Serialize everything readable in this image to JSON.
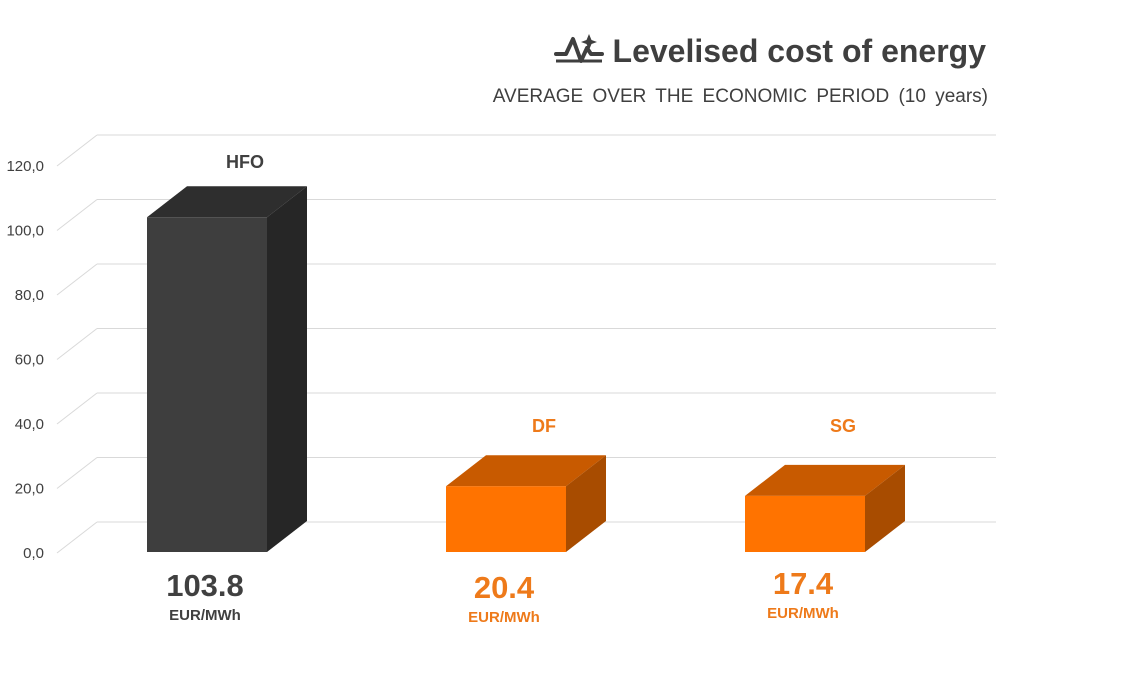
{
  "chart_data": {
    "type": "bar",
    "title": "Levelised cost of energy",
    "subtitle": "AVERAGE  OVER  THE  ECONOMIC  PERIOD  (10 years)",
    "title_icon": "pulse-sparkle-icon",
    "categories": [
      "HFO",
      "DF",
      "SG"
    ],
    "values": [
      103.8,
      20.4,
      17.4
    ],
    "value_labels": [
      "103.8",
      "20.4",
      "17.4"
    ],
    "unit_label": "EUR/MWh",
    "ylim": [
      0,
      120
    ],
    "ytick_step": 20,
    "ytick_labels": [
      "0,0",
      "20,0",
      "40,0",
      "60,0",
      "80,0",
      "100,0",
      "120,0"
    ],
    "xlabel": "",
    "ylabel": "",
    "grid": true,
    "style": "3d-column",
    "colors": {
      "HFO": {
        "front": "#3e3e3e",
        "top": "#2e2e2e",
        "side": "#262626",
        "label": "#404040"
      },
      "DF": {
        "front": "#ff7300",
        "top": "#c85a00",
        "side": "#a84c00",
        "label": "#ee7a1a"
      },
      "SG": {
        "front": "#ff7300",
        "top": "#c85a00",
        "side": "#a84c00",
        "label": "#ee7a1a"
      }
    }
  }
}
